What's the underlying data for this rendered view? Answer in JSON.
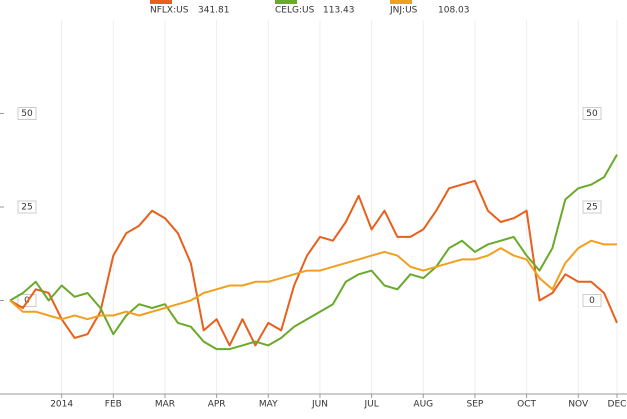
{
  "chart_data": {
    "type": "line",
    "categories": [
      null,
      null,
      null,
      null,
      "2014",
      null,
      null,
      null,
      "FEB",
      null,
      null,
      null,
      "MAR",
      null,
      null,
      null,
      "APR",
      null,
      null,
      null,
      "MAY",
      null,
      null,
      null,
      "JUN",
      null,
      null,
      null,
      "JUL",
      null,
      null,
      null,
      "AUG",
      null,
      null,
      null,
      "SEP",
      null,
      null,
      null,
      "OCT",
      null,
      null,
      null,
      "NOV",
      null,
      null,
      "DEC"
    ],
    "series": [
      {
        "name": "NFLX:US",
        "last": "341.81",
        "color": "#e8601c",
        "values": [
          0,
          -2,
          3,
          2,
          -5,
          -10,
          -9,
          -3,
          12,
          18,
          20,
          24,
          22,
          18,
          10,
          -8,
          -5,
          -12,
          -5,
          -12,
          -6,
          -8,
          4,
          12,
          17,
          16,
          21,
          28,
          19,
          24,
          17,
          17,
          19,
          24,
          30,
          31,
          32,
          24,
          21,
          22,
          24,
          0,
          2,
          7,
          5,
          5,
          2,
          -6
        ]
      },
      {
        "name": "CELG:US",
        "last": "113.43",
        "color": "#6aaa2a",
        "values": [
          0,
          2,
          5,
          0,
          4,
          1,
          2,
          -2,
          -9,
          -4,
          -1,
          -2,
          -1,
          -6,
          -7,
          -11,
          -13,
          -13,
          -12,
          -11,
          -12,
          -10,
          -7,
          -5,
          -3,
          -1,
          5,
          7,
          8,
          4,
          3,
          7,
          6,
          9,
          14,
          16,
          13,
          15,
          16,
          17,
          12,
          8,
          14,
          27,
          30,
          31,
          33,
          39
        ]
      },
      {
        "name": "JNJ:US",
        "last": "108.03",
        "color": "#f0a020",
        "values": [
          0,
          -3,
          -3,
          -4,
          -5,
          -4,
          -5,
          -4,
          -4,
          -3,
          -4,
          -3,
          -2,
          -1,
          0,
          2,
          3,
          4,
          4,
          5,
          5,
          6,
          7,
          8,
          8,
          9,
          10,
          11,
          12,
          13,
          12,
          9,
          8,
          9,
          10,
          11,
          11,
          12,
          14,
          12,
          11,
          6,
          3,
          10,
          14,
          16,
          15,
          15
        ]
      }
    ],
    "ylim": [
      -25,
      75
    ],
    "yticks": [
      0,
      25,
      50
    ],
    "grid": true
  }
}
